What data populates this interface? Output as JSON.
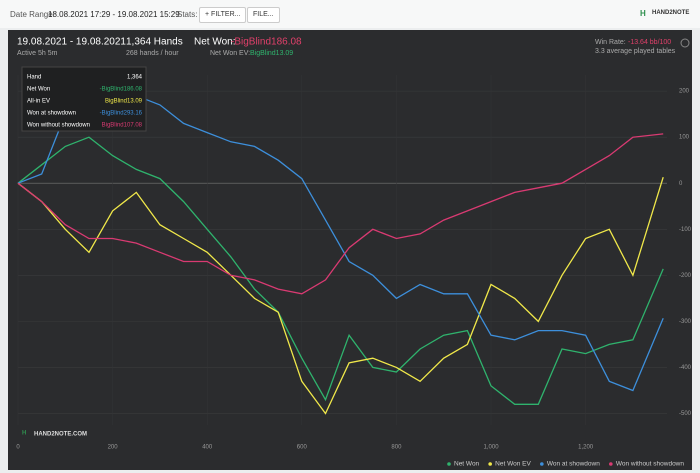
{
  "header": {
    "date_range_label": "Date Range:",
    "date_range": "18.08.2021 17:29 - 19.08.2021 15:29",
    "stats_label": "Stats:",
    "filter_button": "FILTER...",
    "file_button": "FILE...",
    "logo": "HAND2NOTE"
  },
  "summary": {
    "period": "19.08.2021 - 19.08.2021",
    "active": "Active 5h 5m",
    "hands": "1,364 Hands",
    "hands_per_hour": "268 hands / hour",
    "net_won_label": "Net Won:",
    "net_won": "-BigBlind186.08",
    "net_won_ev_label": "Net Won  EV:",
    "net_won_ev": "BigBlind13.09",
    "win_rate_label": "Win Rate:",
    "win_rate": "-13.64 bb/100",
    "tables": "3.3 average played tables"
  },
  "tooltip": {
    "rows": [
      [
        "Hand",
        "1,364"
      ],
      [
        "Net Won",
        "-BigBlind186.08"
      ],
      [
        "All-in EV",
        "BigBlind13.09"
      ],
      [
        "Won at showdown",
        "-BigBlind293.16"
      ],
      [
        "Won without showdown",
        "BigBlind107.08"
      ]
    ]
  },
  "watermark": "HAND2NOTE.COM",
  "chart_data": {
    "type": "line",
    "x": [
      0,
      50,
      100,
      150,
      200,
      250,
      300,
      350,
      400,
      450,
      500,
      550,
      600,
      650,
      700,
      750,
      800,
      850,
      900,
      950,
      1000,
      1050,
      1100,
      1150,
      1200,
      1250,
      1300,
      1364
    ],
    "series": [
      {
        "name": "Net Won",
        "color": "#2fb36d",
        "values": [
          0,
          40,
          80,
          100,
          60,
          30,
          10,
          -40,
          -100,
          -160,
          -230,
          -280,
          -380,
          -470,
          -330,
          -400,
          -410,
          -360,
          -330,
          -320,
          -440,
          -480,
          -480,
          -360,
          -370,
          -350,
          -340,
          -186.08
        ]
      },
      {
        "name": "Net Won  EV",
        "color": "#f0e84a",
        "values": [
          0,
          -40,
          -100,
          -150,
          -60,
          -20,
          -90,
          -120,
          -150,
          -200,
          -250,
          -280,
          -430,
          -500,
          -390,
          -380,
          -400,
          -430,
          -380,
          -350,
          -220,
          -250,
          -300,
          -200,
          -120,
          -100,
          -200,
          13.09
        ]
      },
      {
        "name": "Won at showdown",
        "color": "#3d8fdb",
        "values": [
          0,
          20,
          150,
          200,
          200,
          190,
          170,
          130,
          110,
          90,
          80,
          50,
          10,
          -80,
          -170,
          -200,
          -250,
          -220,
          -240,
          -240,
          -330,
          -340,
          -320,
          -320,
          -330,
          -430,
          -450,
          -293.16
        ]
      },
      {
        "name": "Won without showdown",
        "color": "#d93a72",
        "values": [
          0,
          -40,
          -90,
          -120,
          -120,
          -130,
          -150,
          -170,
          -170,
          -200,
          -210,
          -230,
          -240,
          -210,
          -140,
          -100,
          -120,
          -110,
          -80,
          -60,
          -40,
          -20,
          -10,
          0,
          30,
          60,
          100,
          107.08
        ]
      }
    ],
    "xlim": [
      0,
      1372
    ],
    "xticks": [
      0,
      200,
      400,
      600,
      800,
      {
        "value": 1000,
        "label": "1,000"
      },
      {
        "value": 1200,
        "label": "1,200"
      }
    ],
    "ylim": [
      -525,
      235
    ],
    "yticks": [
      200,
      100,
      0,
      -100,
      -200,
      -300,
      -400,
      -500
    ],
    "grid": true
  }
}
